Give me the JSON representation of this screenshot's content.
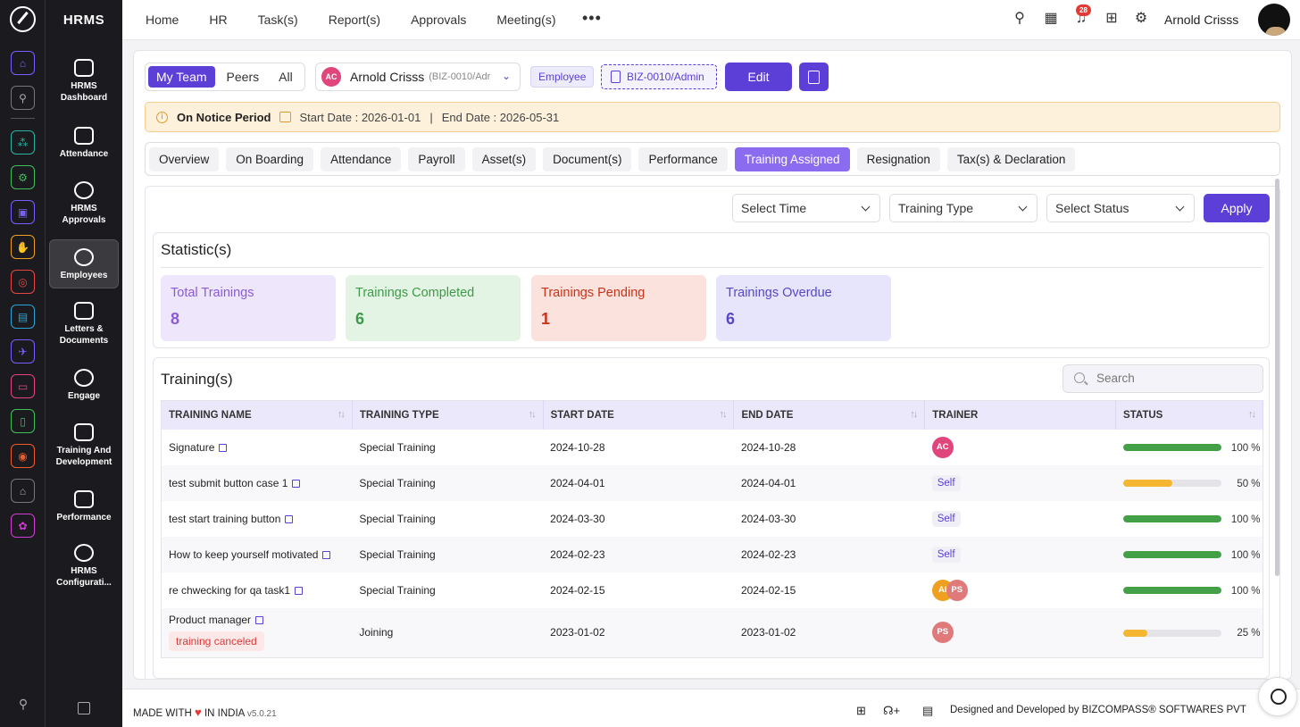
{
  "app": {
    "brand": "HRMS"
  },
  "rail": {
    "icons": [
      "home-icon",
      "pin-icon",
      "network-icon",
      "gear-icon",
      "briefcase-icon",
      "hand-icon",
      "target-icon",
      "archive-icon",
      "flight-icon",
      "monitor-icon",
      "document-icon",
      "coin-icon",
      "home-outline-icon",
      "settings-icon",
      "search-icon"
    ]
  },
  "nav": {
    "items": [
      {
        "label": "HRMS Dashboard",
        "icon": "dashboard-icon"
      },
      {
        "label": "Attendance",
        "icon": "calendar-clock-icon"
      },
      {
        "label": "HRMS Approvals",
        "icon": "user-check-icon"
      },
      {
        "label": "Employees",
        "icon": "user-icon"
      },
      {
        "label": "Letters & Documents",
        "icon": "mail-icon"
      },
      {
        "label": "Engage",
        "icon": "heart-hand-icon"
      },
      {
        "label": "Training And Development",
        "icon": "trainer-icon"
      },
      {
        "label": "Performance",
        "icon": "trend-icon"
      },
      {
        "label": "HRMS Configurati...",
        "icon": "cog-icon"
      }
    ]
  },
  "topbar": {
    "menu": [
      "Home",
      "HR",
      "Task(s)",
      "Report(s)",
      "Approvals",
      "Meeting(s)"
    ],
    "more": "•••",
    "notifications": "28",
    "user": "Arnold Crisss"
  },
  "header": {
    "scope": [
      "My Team",
      "Peers",
      "All"
    ],
    "employee": {
      "initials": "AC",
      "name": "Arnold Crisss",
      "code": "(BIZ-0010/Adr"
    },
    "role_tag": "Employee",
    "id_tag": "BIZ-0010/Admin",
    "edit_label": "Edit"
  },
  "notice": {
    "title": "On Notice Period",
    "start": "Start Date : 2026-01-01",
    "sep": "|",
    "end": "End Date : 2026-05-31"
  },
  "tabs": [
    "Overview",
    "On Boarding",
    "Attendance",
    "Payroll",
    "Asset(s)",
    "Document(s)",
    "Performance",
    "Training Assigned",
    "Resignation",
    "Tax(s) & Declaration"
  ],
  "filters": {
    "time": "Select Time",
    "type": "Training Type",
    "status": "Select Status",
    "apply": "Apply"
  },
  "stats": {
    "title": "Statistic(s)",
    "cards": [
      {
        "label": "Total Trainings",
        "value": "8",
        "bg": "#eee6fb",
        "fg": "#8a5cd8"
      },
      {
        "label": "Trainings Completed",
        "value": "6",
        "bg": "#e4f4e4",
        "fg": "#3e9a4a"
      },
      {
        "label": "Trainings Pending",
        "value": "1",
        "bg": "#fbe2dd",
        "fg": "#c8331b"
      },
      {
        "label": "Trainings Overdue",
        "value": "6",
        "bg": "#e6e5fb",
        "fg": "#5747c9"
      }
    ]
  },
  "trainings": {
    "title": "Training(s)",
    "search_placeholder": "Search",
    "columns": [
      "TRAINING NAME",
      "TRAINING TYPE",
      "START DATE",
      "END DATE",
      "TRAINER",
      "STATUS"
    ],
    "rows": [
      {
        "name": "Signature",
        "type": "Special Training",
        "start": "2024-10-28",
        "end": "2024-10-28",
        "trainer": "AC",
        "progress": 100,
        "pct": "100 %"
      },
      {
        "name": "test submit button case 1",
        "type": "Special Training",
        "start": "2024-04-01",
        "end": "2024-04-01",
        "trainer": "Self",
        "progress": 50,
        "pct": "50 %"
      },
      {
        "name": "test start training button",
        "type": "Special Training",
        "start": "2024-03-30",
        "end": "2024-03-30",
        "trainer": "Self",
        "progress": 100,
        "pct": "100 %"
      },
      {
        "name": "How to keep yourself motivated",
        "type": "Special Training",
        "start": "2024-02-23",
        "end": "2024-02-23",
        "trainer": "Self",
        "progress": 100,
        "pct": "100 %"
      },
      {
        "name": "re chwecking for qa task1",
        "type": "Special Training",
        "start": "2024-02-15",
        "end": "2024-02-15",
        "trainer": "AI PS",
        "progress": 100,
        "pct": "100 %"
      },
      {
        "name": "Product manager",
        "tag": "training canceled",
        "type": "Joining",
        "start": "2023-01-02",
        "end": "2023-01-02",
        "trainer": "PS",
        "progress": 25,
        "pct": "25 %"
      }
    ]
  },
  "footer": {
    "made": "MADE WITH",
    "heart": "♥",
    "in": "IN INDIA",
    "version": "v5.0.21",
    "credit": "Designed and Developed by BIZCOMPASS® SOFTWARES PVT"
  },
  "colors": {
    "accent": "#5b3fd6",
    "tab_active": "#8b6cf0",
    "progress_done": "#43a047",
    "progress_partial": "#f5b731"
  }
}
